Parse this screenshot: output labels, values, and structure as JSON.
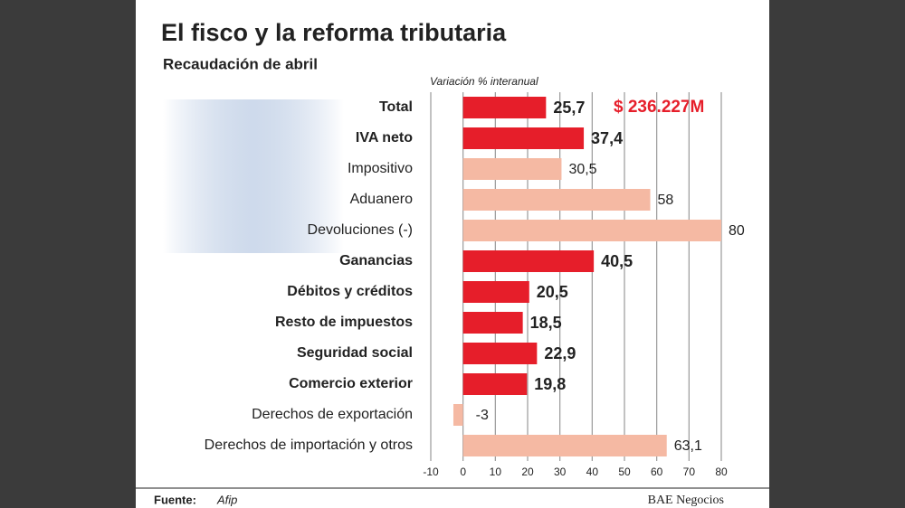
{
  "chart_data": {
    "type": "barh",
    "title": "El fisco y la reforma tributaria",
    "subtitle": "Recaudación de abril",
    "axis_label": "Variación % interanual",
    "annotation": "$ 236.227M",
    "source_label": "Fuente:",
    "source": "Afip",
    "publisher": "BAE Negocios",
    "categories": [
      "Total",
      "IVA neto",
      "Impositivo",
      "Aduanero",
      "Devoluciones (-)",
      "Ganancias",
      "Débitos y créditos",
      "Resto de impuestos",
      "Seguridad social",
      "Comercio exterior",
      "Derechos de exportación",
      "Derechos de importación y otros"
    ],
    "values": [
      25.7,
      37.4,
      30.5,
      58,
      80,
      40.5,
      20.5,
      18.5,
      22.9,
      19.8,
      -3,
      63.1
    ],
    "value_labels": [
      "25,7",
      "37,4",
      "30,5",
      "58",
      "80",
      "40,5",
      "20,5",
      "18,5",
      "22,9",
      "19,8",
      "-3",
      "63,1"
    ],
    "colors": [
      "#e61e2a",
      "#e61e2a",
      "#f5b9a3",
      "#f5b9a3",
      "#f5b9a3",
      "#e61e2a",
      "#e61e2a",
      "#e61e2a",
      "#e61e2a",
      "#e61e2a",
      "#f5b9a3",
      "#f5b9a3"
    ],
    "bold": [
      true,
      true,
      false,
      false,
      false,
      true,
      true,
      true,
      true,
      true,
      false,
      false
    ],
    "xlim": [
      -10,
      80
    ],
    "xticks": [
      -10,
      0,
      10,
      20,
      30,
      40,
      50,
      60,
      70,
      80
    ],
    "grid": true
  }
}
